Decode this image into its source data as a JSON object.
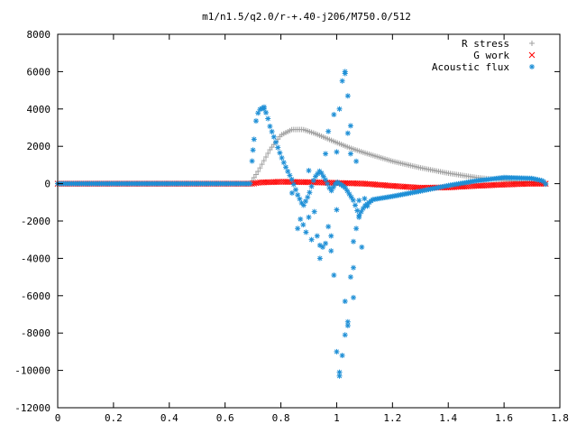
{
  "chart_data": {
    "type": "scatter",
    "title": "m1/n1.5/q2.0/r-+.40-j206/M750.0/512",
    "xlabel": "",
    "ylabel": "",
    "xlim": [
      0,
      1.8
    ],
    "ylim": [
      -12000,
      8000
    ],
    "xticks": [
      "0",
      "0.2",
      "0.4",
      "0.6",
      "0.8",
      "1",
      "1.2",
      "1.4",
      "1.6",
      "1.8"
    ],
    "yticks": [
      "8000",
      "6000",
      "4000",
      "2000",
      "0",
      "-2000",
      "-4000",
      "-6000",
      "-8000",
      "-10000",
      "-12000"
    ],
    "grid": false,
    "legend_position": "top-right",
    "series": [
      {
        "name": "R stress",
        "marker": "+",
        "color": "#a0a0a0",
        "curve": [
          [
            0,
            0
          ],
          [
            0.6,
            0
          ],
          [
            0.69,
            0
          ],
          [
            0.72,
            700
          ],
          [
            0.76,
            1800
          ],
          [
            0.8,
            2600
          ],
          [
            0.84,
            2900
          ],
          [
            0.88,
            2900
          ],
          [
            0.92,
            2700
          ],
          [
            0.96,
            2450
          ],
          [
            1.0,
            2200
          ],
          [
            1.05,
            1900
          ],
          [
            1.1,
            1650
          ],
          [
            1.2,
            1200
          ],
          [
            1.3,
            850
          ],
          [
            1.4,
            560
          ],
          [
            1.5,
            330
          ],
          [
            1.6,
            180
          ],
          [
            1.7,
            80
          ],
          [
            1.75,
            0
          ]
        ],
        "points": []
      },
      {
        "name": "G work",
        "marker": "x",
        "color": "#ff0000",
        "curve": [
          [
            0,
            0
          ],
          [
            0.7,
            0
          ],
          [
            0.72,
            60
          ],
          [
            0.8,
            100
          ],
          [
            0.9,
            80
          ],
          [
            1.0,
            40
          ],
          [
            1.1,
            0
          ],
          [
            1.2,
            -120
          ],
          [
            1.3,
            -220
          ],
          [
            1.4,
            -200
          ],
          [
            1.5,
            -120
          ],
          [
            1.6,
            -50
          ],
          [
            1.7,
            0
          ],
          [
            1.75,
            0
          ]
        ],
        "points": []
      },
      {
        "name": "Acoustic flux",
        "marker": "*",
        "color": "#1e8fd6",
        "curve": [
          [
            0,
            0
          ],
          [
            0.69,
            0
          ],
          [
            0.7,
            1800
          ],
          [
            0.71,
            3300
          ],
          [
            0.72,
            3900
          ],
          [
            0.73,
            4050
          ],
          [
            0.74,
            4000
          ],
          [
            0.75,
            3700
          ],
          [
            0.76,
            3100
          ],
          [
            0.78,
            2300
          ],
          [
            0.8,
            1500
          ],
          [
            0.82,
            800
          ],
          [
            0.84,
            200
          ],
          [
            0.86,
            -600
          ],
          [
            0.88,
            -1200
          ],
          [
            0.9,
            -600
          ],
          [
            0.92,
            300
          ],
          [
            0.94,
            700
          ],
          [
            0.96,
            200
          ],
          [
            0.98,
            -400
          ],
          [
            1.0,
            100
          ],
          [
            1.03,
            -200
          ],
          [
            1.06,
            -900
          ],
          [
            1.08,
            -1700
          ],
          [
            1.1,
            -1200
          ],
          [
            1.13,
            -850
          ],
          [
            1.2,
            -680
          ],
          [
            1.3,
            -400
          ],
          [
            1.4,
            -100
          ],
          [
            1.5,
            150
          ],
          [
            1.6,
            330
          ],
          [
            1.7,
            280
          ],
          [
            1.74,
            150
          ],
          [
            1.75,
            -50
          ]
        ],
        "points": [
          [
            0.7,
            1800
          ],
          [
            0.74,
            4100
          ],
          [
            0.84,
            -500
          ],
          [
            0.86,
            -2400
          ],
          [
            0.87,
            -1900
          ],
          [
            0.88,
            -2200
          ],
          [
            0.89,
            -2600
          ],
          [
            0.9,
            -1800
          ],
          [
            0.9,
            700
          ],
          [
            0.91,
            -3000
          ],
          [
            0.92,
            -1500
          ],
          [
            0.93,
            -2800
          ],
          [
            0.94,
            -3300
          ],
          [
            0.94,
            -4000
          ],
          [
            0.95,
            -3400
          ],
          [
            0.96,
            -3200
          ],
          [
            0.96,
            1600
          ],
          [
            0.97,
            -2300
          ],
          [
            0.97,
            2800
          ],
          [
            0.98,
            -3600
          ],
          [
            0.98,
            -2800
          ],
          [
            0.99,
            -4900
          ],
          [
            0.99,
            3700
          ],
          [
            1.0,
            -1400
          ],
          [
            1.0,
            -9000
          ],
          [
            1.0,
            1700
          ],
          [
            1.01,
            -10300
          ],
          [
            1.01,
            -10100
          ],
          [
            1.01,
            4000
          ],
          [
            1.02,
            -9200
          ],
          [
            1.02,
            5500
          ],
          [
            1.03,
            6000
          ],
          [
            1.03,
            5900
          ],
          [
            1.03,
            -8100
          ],
          [
            1.03,
            -6300
          ],
          [
            1.04,
            -7600
          ],
          [
            1.04,
            -7400
          ],
          [
            1.04,
            2700
          ],
          [
            1.04,
            4700
          ],
          [
            1.05,
            -5000
          ],
          [
            1.05,
            1600
          ],
          [
            1.05,
            3100
          ],
          [
            1.06,
            -6100
          ],
          [
            1.06,
            -4500
          ],
          [
            1.06,
            -3100
          ],
          [
            1.07,
            -2400
          ],
          [
            1.07,
            1200
          ],
          [
            1.08,
            -1800
          ],
          [
            1.08,
            -900
          ],
          [
            1.09,
            -3400
          ],
          [
            1.1,
            -800
          ],
          [
            1.11,
            -1200
          ]
        ]
      }
    ]
  }
}
